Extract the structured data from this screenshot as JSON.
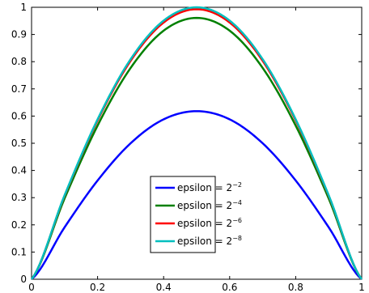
{
  "chart_data": {
    "type": "line",
    "title": "",
    "xlabel": "",
    "ylabel": "",
    "xlim": [
      0,
      1
    ],
    "ylim": [
      0,
      1
    ],
    "xticks": [
      0,
      0.2,
      0.4,
      0.6,
      0.8,
      1
    ],
    "xtick_labels": [
      "0",
      "0.2",
      "0.4",
      "0.6",
      "0.8",
      "1"
    ],
    "yticks": [
      0,
      0.1,
      0.2,
      0.3,
      0.4,
      0.5,
      0.6,
      0.7,
      0.8,
      0.9,
      1
    ],
    "ytick_labels": [
      "0",
      "0.1",
      "0.2",
      "0.3",
      "0.4",
      "0.5",
      "0.6",
      "0.7",
      "0.8",
      "0.9",
      "1"
    ],
    "grid": false,
    "legend_position": "lower-center",
    "series": [
      {
        "name": "epsilon = 2^-2",
        "label_base": "epsilon = 2",
        "label_exp": "−2",
        "color": "#0000ff",
        "x": [
          0,
          0.1,
          0.2,
          0.3,
          0.4,
          0.5,
          0.6,
          0.7,
          0.8,
          0.9,
          1
        ],
        "y": [
          0,
          0.191,
          0.363,
          0.5,
          0.588,
          0.618,
          0.588,
          0.5,
          0.363,
          0.191,
          0
        ]
      },
      {
        "name": "epsilon = 2^-4",
        "label_base": "epsilon = 2",
        "label_exp": "−4",
        "color": "#008000",
        "x": [
          0,
          0.1,
          0.2,
          0.3,
          0.4,
          0.5,
          0.6,
          0.7,
          0.8,
          0.9,
          1
        ],
        "y": [
          0,
          0.297,
          0.565,
          0.777,
          0.914,
          0.961,
          0.914,
          0.777,
          0.565,
          0.297,
          0
        ]
      },
      {
        "name": "epsilon = 2^-6",
        "label_base": "epsilon = 2",
        "label_exp": "−6",
        "color": "#ff0000",
        "x": [
          0,
          0.1,
          0.2,
          0.3,
          0.4,
          0.5,
          0.6,
          0.7,
          0.8,
          0.9,
          1
        ],
        "y": [
          0,
          0.307,
          0.584,
          0.803,
          0.944,
          0.993,
          0.944,
          0.803,
          0.584,
          0.307,
          0
        ]
      },
      {
        "name": "epsilon = 2^-8",
        "label_base": "epsilon = 2",
        "label_exp": "−8",
        "color": "#00bfbf",
        "x": [
          0,
          0.1,
          0.2,
          0.3,
          0.4,
          0.5,
          0.6,
          0.7,
          0.8,
          0.9,
          1
        ],
        "y": [
          0,
          0.309,
          0.588,
          0.809,
          0.951,
          1.0,
          0.951,
          0.809,
          0.588,
          0.309,
          0
        ]
      }
    ]
  }
}
